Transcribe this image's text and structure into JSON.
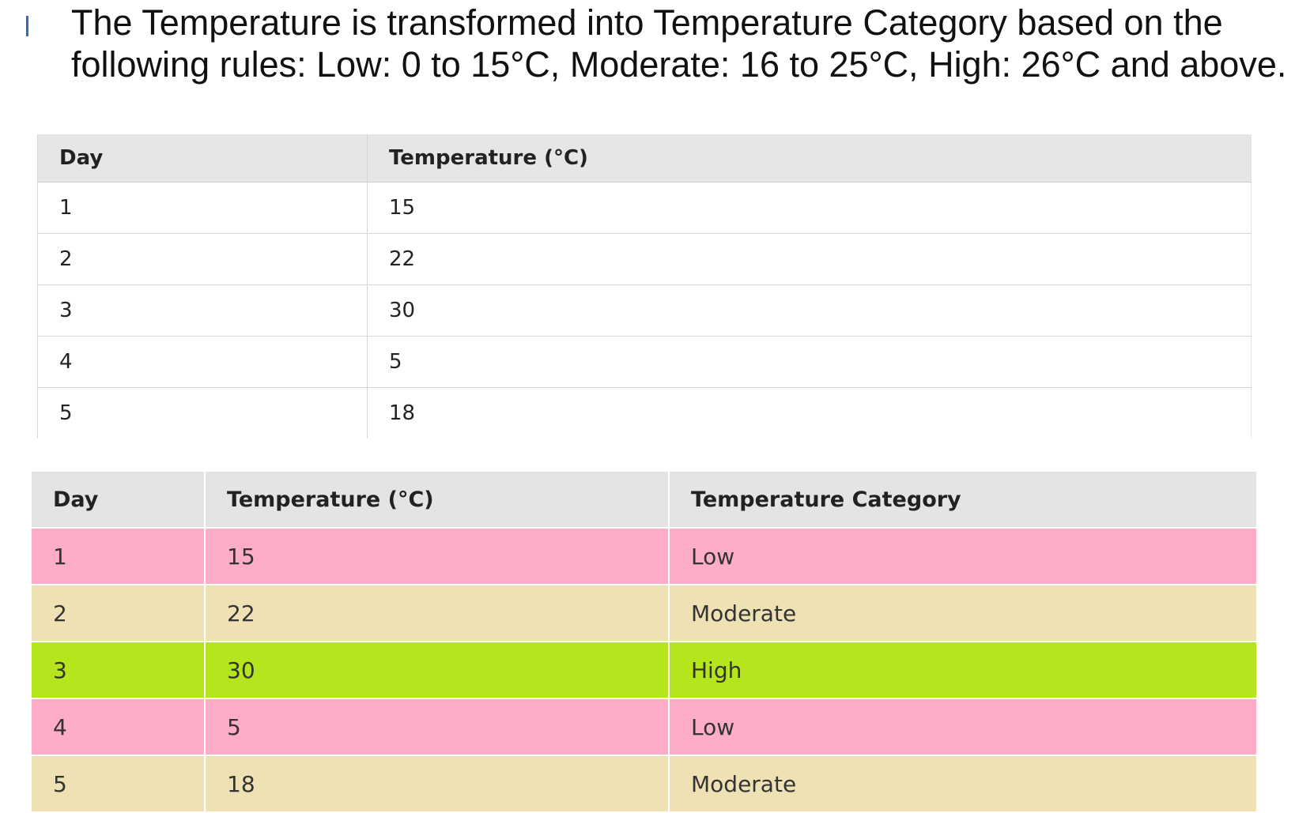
{
  "heading": "The Temperature is transformed into Temperature Category based on the following rules: Low: 0 to 15°C, Moderate: 16 to 25°C, High: 26°C and above.",
  "colors": {
    "bullet": "#2f6db5",
    "low_row": "#fdadc8",
    "moderate_row": "#eee2b4",
    "high_row": "#b5e61d",
    "header_bg": "#e4e4e4"
  },
  "table1": {
    "headers": [
      "Day",
      "Temperature (°C)"
    ],
    "rows": [
      [
        "1",
        "15"
      ],
      [
        "2",
        "22"
      ],
      [
        "3",
        "30"
      ],
      [
        "4",
        "5"
      ],
      [
        "5",
        "18"
      ]
    ]
  },
  "table2": {
    "headers": [
      "Day",
      "Temperature (°C)",
      "Temperature Category"
    ],
    "rows": [
      [
        "1",
        "15",
        "Low"
      ],
      [
        "2",
        "22",
        "Moderate"
      ],
      [
        "3",
        "30",
        "High"
      ],
      [
        "4",
        "5",
        "Low"
      ],
      [
        "5",
        "18",
        "Moderate"
      ]
    ]
  }
}
